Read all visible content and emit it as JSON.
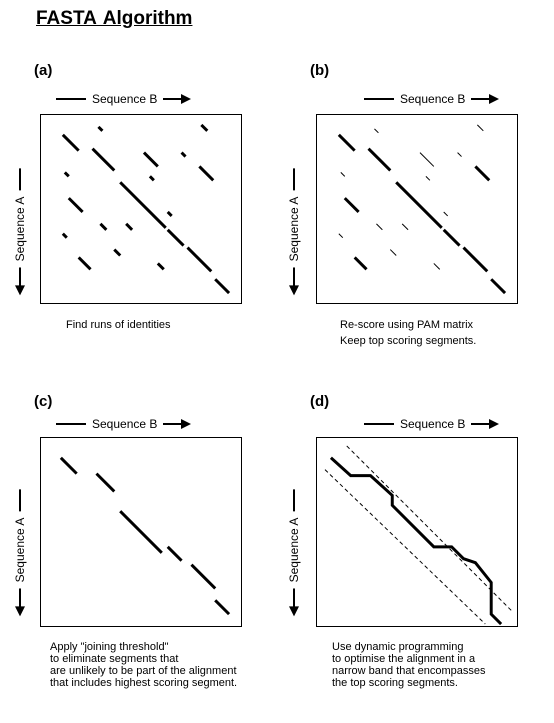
{
  "title": "FASTA Algorithm",
  "axis_labels": {
    "sequence_b": "Sequence B",
    "sequence_a": "Sequence A"
  },
  "panels": [
    {
      "label": "(a)",
      "caption": [
        "Find runs of identities"
      ]
    },
    {
      "label": "(b)",
      "caption": [
        "Re-score using PAM matrix",
        "Keep top scoring segments."
      ]
    },
    {
      "label": "(c)",
      "caption": [
        "Apply \"joining threshold\"",
        "to eliminate segments that",
        "are unlikely to be part of the alignment",
        "that includes highest scoring segment."
      ]
    },
    {
      "label": "(d)",
      "caption": [
        "Use dynamic programming",
        "to optimise the alignment in a",
        "narrow band that encompasses",
        "the top scoring segments."
      ]
    }
  ],
  "colors": {
    "ink": "#000000",
    "background": "#ffffff"
  },
  "icons": [
    "right-arrow-icon",
    "down-arrow-icon"
  ]
}
